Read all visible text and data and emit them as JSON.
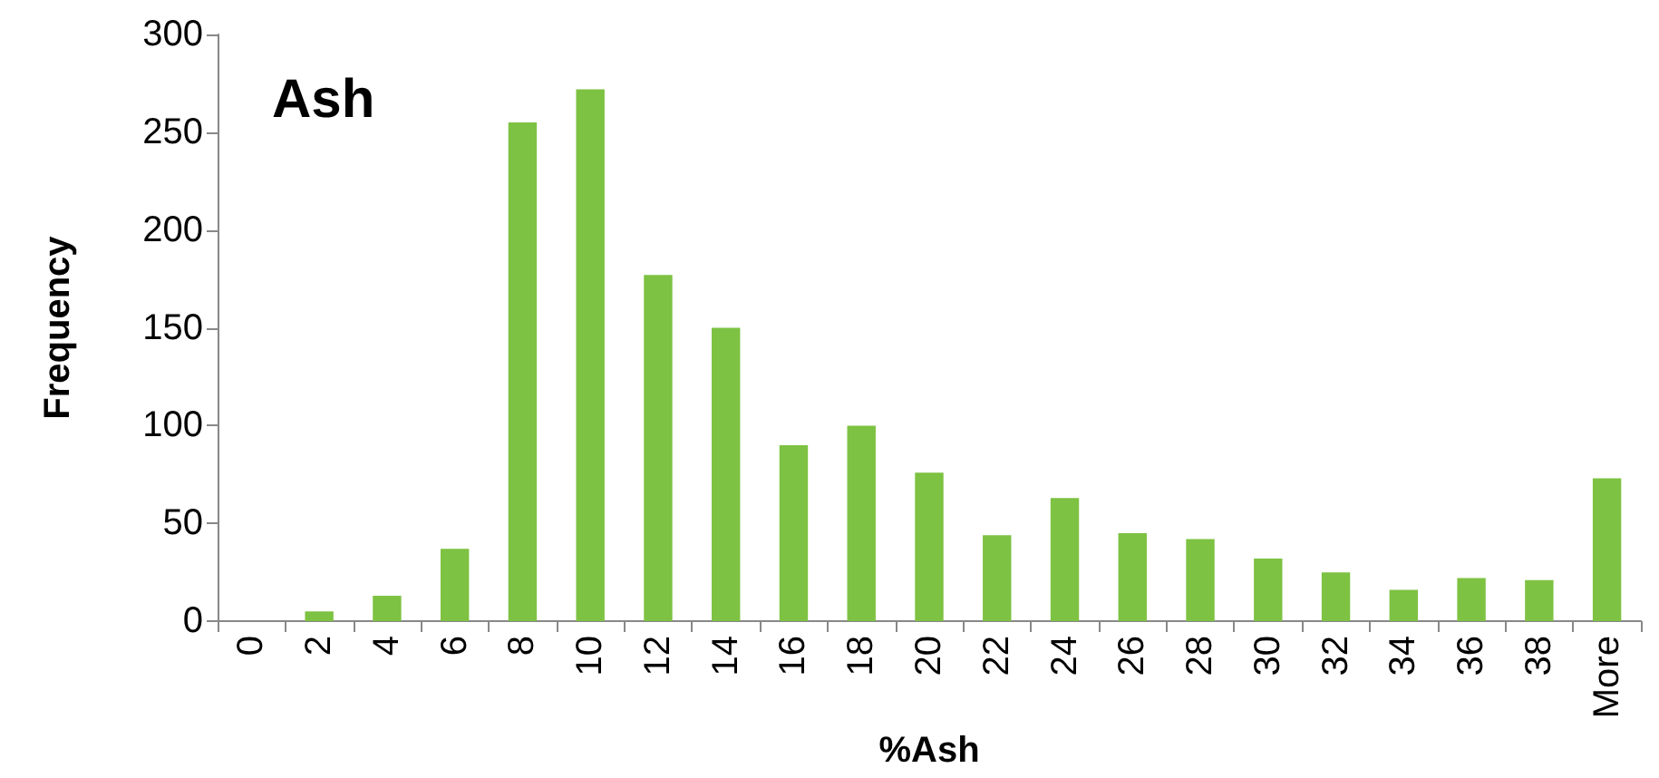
{
  "chart_data": {
    "type": "bar",
    "title": "Ash",
    "xlabel": "%Ash",
    "ylabel": "Frequency",
    "categories": [
      "0",
      "2",
      "4",
      "6",
      "8",
      "10",
      "12",
      "14",
      "16",
      "18",
      "20",
      "22",
      "24",
      "26",
      "28",
      "30",
      "32",
      "34",
      "36",
      "38",
      "More"
    ],
    "values": [
      0,
      5,
      13,
      37,
      255,
      272,
      177,
      150,
      90,
      100,
      76,
      44,
      63,
      45,
      42,
      32,
      25,
      16,
      22,
      21,
      73
    ],
    "color": "#7dc242",
    "ylim": [
      0,
      300
    ],
    "yticks": [
      0,
      50,
      100,
      150,
      200,
      250,
      300
    ],
    "grid": false
  }
}
